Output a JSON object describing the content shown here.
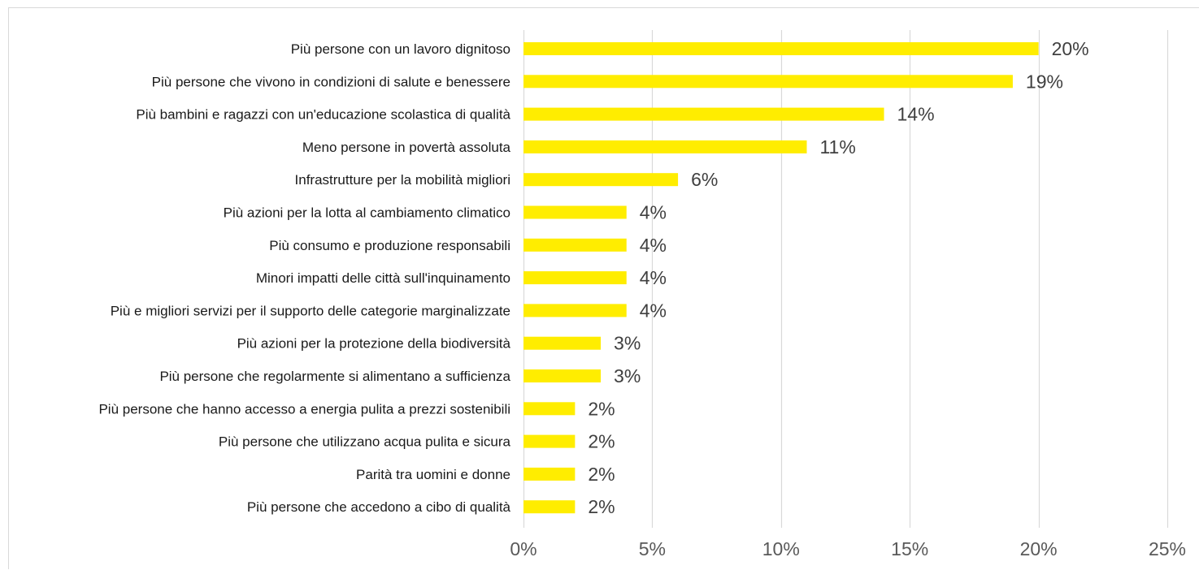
{
  "chart_data": {
    "type": "bar",
    "orientation": "horizontal",
    "categories": [
      "Più persone con un lavoro dignitoso",
      "Più persone che vivono in condizioni di salute e benessere",
      "Più bambini e ragazzi con un'educazione scolastica di qualità",
      "Meno persone in povertà assoluta",
      "Infrastrutture per la mobilità migliori",
      "Più azioni per la lotta al cambiamento climatico",
      "Più consumo e produzione responsabili",
      "Minori impatti delle città sull'inquinamento",
      "Più e migliori servizi per il supporto delle categorie marginalizzate",
      "Più azioni per la protezione della biodiversità",
      "Più persone che regolarmente si alimentano a sufficienza",
      "Più persone che hanno accesso a energia pulita a prezzi sostenibili",
      "Più persone che utilizzano acqua pulita e sicura",
      "Parità tra uomini e donne",
      "Più persone che accedono a cibo di qualità"
    ],
    "values": [
      20,
      19,
      14,
      11,
      6,
      4,
      4,
      4,
      4,
      3,
      3,
      2,
      2,
      2,
      2
    ],
    "data_labels": [
      "20%",
      "19%",
      "14%",
      "11%",
      "6%",
      "4%",
      "4%",
      "4%",
      "4%",
      "3%",
      "3%",
      "2%",
      "2%",
      "2%",
      "2%"
    ],
    "xlim": [
      0,
      25
    ],
    "xticks": [
      0,
      5,
      10,
      15,
      20,
      25
    ],
    "xtick_labels": [
      "0%",
      "5%",
      "10%",
      "15%",
      "20%",
      "25%"
    ],
    "title": "",
    "xlabel": "",
    "ylabel": "",
    "grid": "vertical",
    "legend": "none",
    "colors": {
      "bar": "#FFED00",
      "grid": "#d9d9d9",
      "category_text": "#1a1a1a",
      "value_text": "#404040",
      "tick_text": "#595959"
    }
  }
}
